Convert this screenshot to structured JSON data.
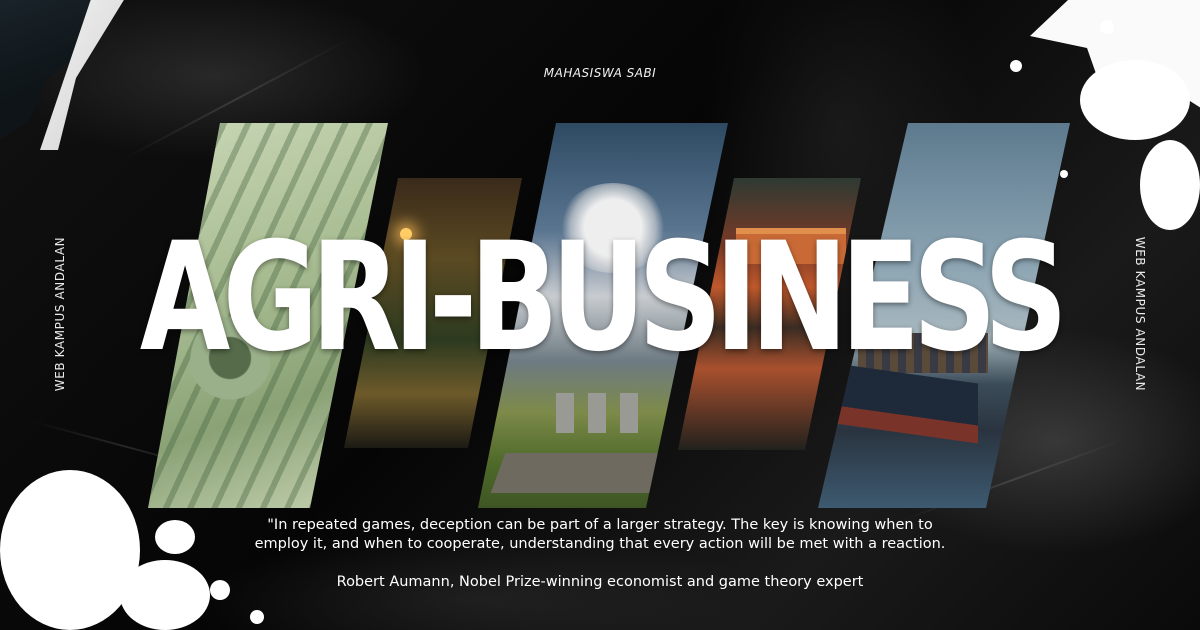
{
  "brand": "MAHASISWA SABI",
  "side_label_left": "WEB KAMPUS ANDALAN",
  "side_label_right": "WEB KAMPUS ANDALAN",
  "title": "AGRI-BUSINESS",
  "quote": "\"In repeated games, deception can be part of a larger strategy. The key is knowing when to employ it, and when to cooperate, understanding that every action will be met with a reaction.",
  "attribution": "Robert Aumann, Nobel Prize-winning economist and game theory expert",
  "panels": [
    {
      "subject": "dollar-bills-photo"
    },
    {
      "subject": "market-stall-photo"
    },
    {
      "subject": "power-plant-field-photo"
    },
    {
      "subject": "asian-street-market-photo"
    },
    {
      "subject": "cargo-ship-port-photo"
    }
  ],
  "colors": {
    "background": "#0b0b0b",
    "text": "#ffffff",
    "splatter": "#ffffff"
  }
}
